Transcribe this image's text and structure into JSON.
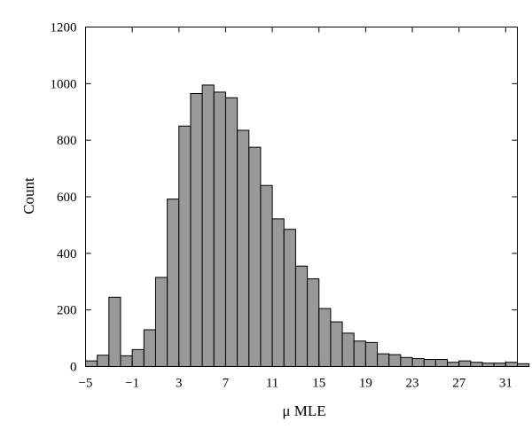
{
  "chart_data": {
    "type": "bar",
    "subtype": "histogram",
    "xlabel": "μ MLE",
    "ylabel": "Count",
    "xlim": [
      -5,
      32
    ],
    "ylim": [
      0,
      1200
    ],
    "xticks": [
      -5,
      -1,
      3,
      7,
      11,
      15,
      19,
      23,
      27,
      31
    ],
    "xtick_labels": [
      "−5",
      "−1",
      "3",
      "7",
      "11",
      "15",
      "19",
      "23",
      "27",
      "31"
    ],
    "yticks": [
      0,
      200,
      400,
      600,
      800,
      1000,
      1200
    ],
    "ytick_labels": [
      "0",
      "200",
      "400",
      "600",
      "800",
      "1000",
      "1200"
    ],
    "bin_start": -5,
    "bin_width": 1,
    "values": [
      20,
      40,
      245,
      38,
      60,
      130,
      315,
      592,
      850,
      965,
      995,
      970,
      950,
      835,
      775,
      640,
      522,
      485,
      355,
      310,
      205,
      158,
      118,
      90,
      85,
      45,
      42,
      32,
      28,
      25,
      25,
      15,
      20,
      15,
      12,
      12,
      15,
      10
    ],
    "bar_color": "#999999",
    "edge_color": "#000000",
    "grid": false
  }
}
